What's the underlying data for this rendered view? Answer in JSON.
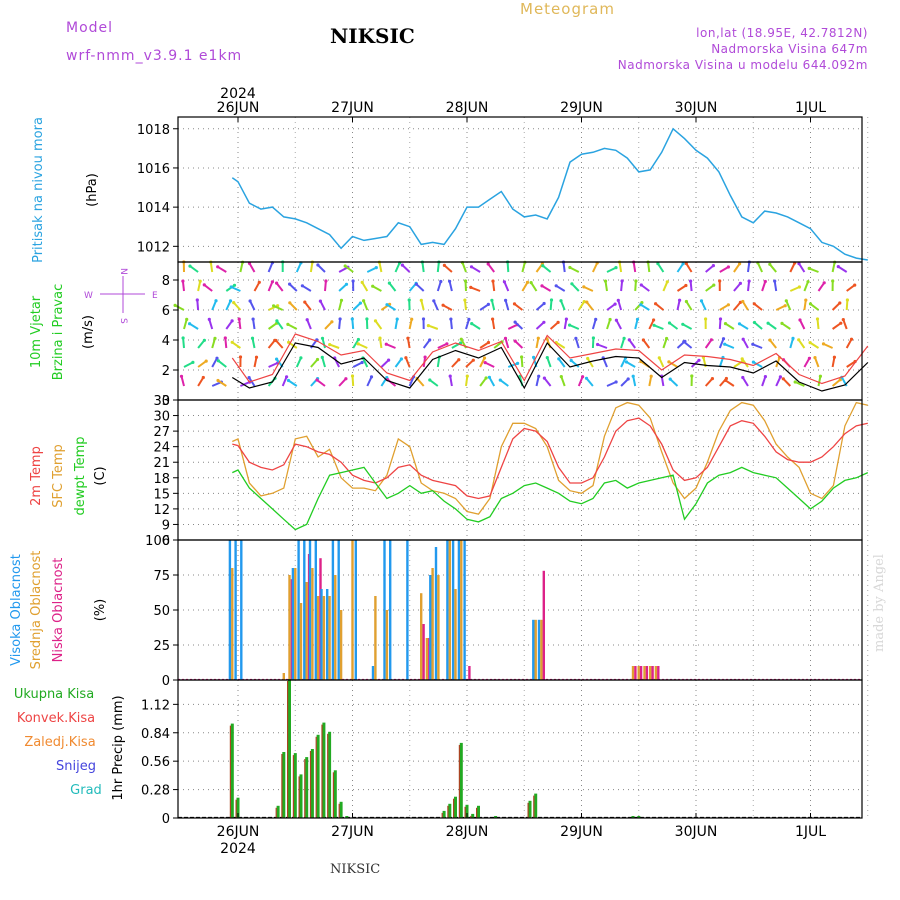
{
  "header": {
    "model_label": "Model",
    "model_name": "wrf-nmm_v3.9.1 e1km",
    "station": "NIKSIC",
    "meteogram": "Meteogram",
    "lonlat": "lon,lat (18.95E, 42.7812N)",
    "elevation": "Nadmorska Visina 647m",
    "model_elevation": "Nadmorska Visina u modelu 644.092m"
  },
  "footer": {
    "station": "NIKSIC",
    "credit": "made by Angel"
  },
  "time_axis": {
    "year": "2024",
    "days": [
      "26JUN",
      "27JUN",
      "28JUN",
      "29JUN",
      "30JUN",
      "1JUL"
    ]
  },
  "colors": {
    "pressure": "#2aa3e0",
    "temp2m": "#ee4444",
    "sfc": "#e0a030",
    "dewpt": "#22cc22",
    "high": "#2299ee",
    "mid": "#e0a030",
    "low": "#dd2288",
    "total": "#22aa22",
    "conv": "#ee4444",
    "frozen": "#f08a30",
    "snow": "#4444dd",
    "grad": "#22bbbb"
  },
  "chart_data": [
    {
      "type": "line",
      "title": "",
      "ylabel": "Pritisak na nivou mora",
      "unit": "(hPa)",
      "yticks": [
        1012,
        1014,
        1016,
        1018
      ],
      "ylim": [
        1011.2,
        1018.6
      ],
      "x": [
        -0.05,
        0.0,
        0.1,
        0.2,
        0.3,
        0.4,
        0.5,
        0.6,
        0.7,
        0.8,
        0.9,
        1.0,
        1.1,
        1.2,
        1.3,
        1.4,
        1.5,
        1.6,
        1.7,
        1.8,
        1.9,
        2.0,
        2.1,
        2.2,
        2.3,
        2.4,
        2.5,
        2.6,
        2.7,
        2.8,
        2.9,
        3.0,
        3.1,
        3.2,
        3.3,
        3.4,
        3.5,
        3.6,
        3.7,
        3.8,
        3.9,
        4.0,
        4.1,
        4.2,
        4.3,
        4.4,
        4.5,
        4.6,
        4.7,
        4.8,
        4.9,
        5.0,
        5.1,
        5.2,
        5.3,
        5.4,
        5.5
      ],
      "series": [
        {
          "name": "",
          "values": [
            1015.5,
            1015.3,
            1014.2,
            1013.9,
            1014.0,
            1013.5,
            1013.4,
            1013.2,
            1012.9,
            1012.6,
            1011.9,
            1012.5,
            1012.3,
            1012.4,
            1012.5,
            1013.2,
            1013.0,
            1012.1,
            1012.2,
            1012.1,
            1012.9,
            1014.0,
            1014.0,
            1014.4,
            1014.8,
            1013.9,
            1013.5,
            1013.6,
            1013.4,
            1014.5,
            1016.3,
            1016.7,
            1016.8,
            1017.0,
            1016.9,
            1016.5,
            1015.8,
            1015.9,
            1016.8,
            1018.0,
            1017.5,
            1016.9,
            1016.5,
            1015.8,
            1014.6,
            1013.5,
            1013.2,
            1013.8,
            1013.7,
            1013.5,
            1013.2,
            1012.9,
            1012.2,
            1012.0,
            1011.6,
            1011.4,
            1011.3
          ]
        }
      ]
    },
    {
      "type": "line",
      "title": "",
      "ylabel": "10m Vjetar Brzina i Pravac",
      "unit": "(m/s)",
      "compass": "N S W E",
      "yticks": [
        0,
        2,
        4,
        6,
        8
      ],
      "ylim": [
        0,
        9.2
      ],
      "x": [
        -0.05,
        0.1,
        0.3,
        0.5,
        0.7,
        0.9,
        1.1,
        1.3,
        1.5,
        1.7,
        1.9,
        2.1,
        2.3,
        2.5,
        2.7,
        2.9,
        3.1,
        3.3,
        3.5,
        3.7,
        3.9,
        4.1,
        4.3,
        4.5,
        4.7,
        4.9,
        5.1,
        5.3,
        5.5
      ],
      "series": [
        {
          "name": "",
          "values": [
            1.5,
            0.8,
            1.2,
            3.8,
            3.5,
            2.4,
            2.8,
            1.3,
            0.8,
            2.7,
            3.3,
            2.8,
            3.5,
            0.8,
            3.8,
            2.2,
            2.6,
            2.9,
            2.8,
            1.5,
            2.5,
            2.3,
            2.2,
            1.8,
            2.6,
            1.2,
            0.6,
            1.0,
            2.5
          ]
        },
        {
          "name": "",
          "values": [
            2.8,
            1.2,
            1.7,
            4.4,
            3.9,
            3.0,
            3.3,
            1.8,
            1.3,
            3.2,
            3.8,
            3.3,
            3.9,
            1.3,
            4.3,
            2.8,
            3.1,
            3.4,
            3.3,
            2.0,
            3.0,
            2.9,
            2.7,
            2.3,
            3.1,
            1.7,
            1.1,
            1.6,
            3.6
          ]
        }
      ]
    },
    {
      "type": "line",
      "title": "",
      "ylabel": "2m Temp / SFC Temp / dewpt Temp",
      "unit": "(C)",
      "yticks": [
        6,
        9,
        12,
        15,
        18,
        21,
        24,
        27,
        30,
        33
      ],
      "ylim": [
        6,
        33
      ],
      "x": [
        -0.05,
        0.0,
        0.1,
        0.2,
        0.3,
        0.4,
        0.5,
        0.6,
        0.7,
        0.8,
        0.9,
        1.0,
        1.1,
        1.2,
        1.3,
        1.4,
        1.5,
        1.6,
        1.7,
        1.8,
        1.9,
        2.0,
        2.1,
        2.2,
        2.3,
        2.4,
        2.5,
        2.6,
        2.7,
        2.8,
        2.9,
        3.0,
        3.1,
        3.2,
        3.3,
        3.4,
        3.5,
        3.6,
        3.7,
        3.8,
        3.9,
        4.0,
        4.1,
        4.2,
        4.3,
        4.4,
        4.5,
        4.6,
        4.7,
        4.8,
        4.9,
        5.0,
        5.1,
        5.2,
        5.3,
        5.4,
        5.5
      ],
      "series": [
        {
          "name": "2m Temp",
          "values": [
            24.5,
            24.2,
            21.0,
            20.0,
            19.5,
            20.5,
            24.5,
            24.0,
            23.0,
            22.5,
            21.0,
            18.5,
            17.5,
            17.0,
            18.0,
            20.0,
            20.5,
            18.5,
            17.5,
            17.0,
            16.5,
            14.5,
            14.0,
            14.5,
            20.0,
            25.5,
            27.5,
            27.0,
            25.0,
            20.0,
            17.0,
            17.0,
            18.0,
            22.0,
            27.0,
            29.0,
            29.5,
            28.0,
            24.5,
            19.5,
            17.5,
            18.0,
            20.0,
            24.0,
            28.0,
            29.0,
            28.5,
            26.0,
            23.0,
            21.5,
            21.0,
            21.0,
            22.0,
            24.0,
            26.5,
            28.0,
            28.5
          ]
        },
        {
          "name": "SFC Temp",
          "values": [
            25.0,
            25.5,
            17.0,
            14.5,
            15.0,
            16.0,
            25.5,
            26.0,
            22.0,
            23.5,
            18.0,
            16.0,
            16.0,
            15.5,
            18.5,
            25.5,
            24.0,
            17.0,
            15.5,
            15.0,
            14.0,
            11.5,
            11.0,
            14.0,
            24.0,
            28.5,
            28.5,
            27.5,
            24.0,
            17.5,
            15.5,
            15.0,
            16.5,
            26.0,
            31.5,
            32.5,
            32.0,
            29.5,
            23.0,
            17.0,
            14.0,
            16.0,
            21.0,
            27.0,
            31.0,
            32.5,
            32.0,
            29.0,
            24.5,
            22.0,
            20.0,
            15.0,
            14.0,
            16.5,
            28.0,
            32.5,
            32.0
          ]
        },
        {
          "name": "dewpt Temp",
          "values": [
            19.0,
            19.5,
            16.0,
            14.0,
            12.0,
            10.0,
            8.0,
            9.0,
            14.0,
            18.5,
            19.0,
            19.5,
            20.0,
            17.0,
            14.0,
            15.0,
            16.5,
            15.0,
            15.5,
            13.5,
            12.0,
            10.0,
            9.5,
            10.5,
            14.0,
            15.0,
            16.5,
            17.0,
            16.0,
            15.0,
            13.5,
            13.0,
            14.0,
            17.0,
            17.5,
            16.0,
            17.0,
            17.5,
            18.0,
            18.5,
            10.0,
            13.0,
            17.0,
            18.5,
            19.0,
            20.0,
            19.0,
            18.5,
            18.0,
            16.0,
            14.0,
            12.0,
            13.5,
            16.0,
            17.5,
            18.0,
            19.0
          ]
        }
      ]
    },
    {
      "type": "bar",
      "title": "",
      "ylabels": [
        "Visoka Oblacnost",
        "Srednja Oblacnost",
        "Niska Oblacnost"
      ],
      "unit": "(%)",
      "yticks": [
        0,
        25,
        50,
        75,
        100
      ],
      "ylim": [
        0,
        100
      ],
      "x": [
        -0.05,
        0.0,
        0.05,
        0.4,
        0.45,
        0.5,
        0.55,
        0.6,
        0.65,
        0.7,
        0.75,
        0.8,
        0.85,
        0.9,
        0.95,
        1.0,
        1.05,
        1.2,
        1.3,
        1.35,
        1.5,
        1.6,
        1.65,
        1.7,
        1.75,
        1.85,
        1.9,
        1.95,
        2.0,
        2.6,
        2.65,
        3.45,
        3.5,
        3.55,
        3.6,
        3.65
      ],
      "series": [
        {
          "name": "Visoka Oblacnost",
          "values": [
            100,
            100,
            100,
            0,
            0,
            80,
            100,
            100,
            100,
            100,
            65,
            65,
            100,
            100,
            0,
            0,
            100,
            10,
            100,
            100,
            100,
            0,
            0,
            75,
            95,
            100,
            100,
            100,
            100,
            43,
            43,
            0,
            0,
            0,
            0,
            0
          ]
        },
        {
          "name": "Srednja Oblacnost",
          "values": [
            80,
            0,
            0,
            5,
            75,
            80,
            55,
            70,
            80,
            60,
            60,
            60,
            75,
            50,
            0,
            100,
            0,
            60,
            50,
            0,
            0,
            62,
            30,
            80,
            75,
            100,
            65,
            100,
            0,
            43,
            43,
            10,
            10,
            10,
            10,
            10
          ]
        },
        {
          "name": "Niska Oblacnost",
          "values": [
            0,
            0,
            0,
            0,
            72,
            0,
            0,
            90,
            0,
            87,
            0,
            0,
            0,
            0,
            0,
            0,
            0,
            0,
            0,
            0,
            0,
            40,
            30,
            0,
            0,
            0,
            0,
            0,
            10,
            0,
            78,
            10,
            10,
            10,
            10,
            10
          ]
        }
      ]
    },
    {
      "type": "bar",
      "title": "",
      "ylabel": "1hr Precip",
      "unit": "(mm)",
      "legend": [
        "Ukupna Kisa",
        "Konvek.Kisa",
        "Zaledj.Kisa",
        "Snijeg",
        "Grad"
      ],
      "yticks": [
        0,
        0.28,
        0.56,
        0.84,
        1.12
      ],
      "ylim": [
        0,
        1.36
      ],
      "x": [
        -0.05,
        0.0,
        0.35,
        0.4,
        0.45,
        0.5,
        0.55,
        0.6,
        0.65,
        0.7,
        0.75,
        0.8,
        0.85,
        0.9,
        0.95,
        1.8,
        1.85,
        1.9,
        1.95,
        2.0,
        2.05,
        2.1,
        2.25,
        2.55,
        2.6,
        3.45,
        3.5
      ],
      "series": [
        {
          "name": "Ukupna Kisa",
          "values": [
            0.93,
            0.2,
            0.12,
            0.65,
            1.37,
            0.64,
            0.43,
            0.6,
            0.68,
            0.82,
            0.94,
            0.85,
            0.47,
            0.16,
            0.02,
            0.07,
            0.14,
            0.21,
            0.74,
            0.13,
            0.04,
            0.12,
            0.02,
            0.17,
            0.24,
            0.02,
            0.02
          ]
        }
      ]
    }
  ]
}
